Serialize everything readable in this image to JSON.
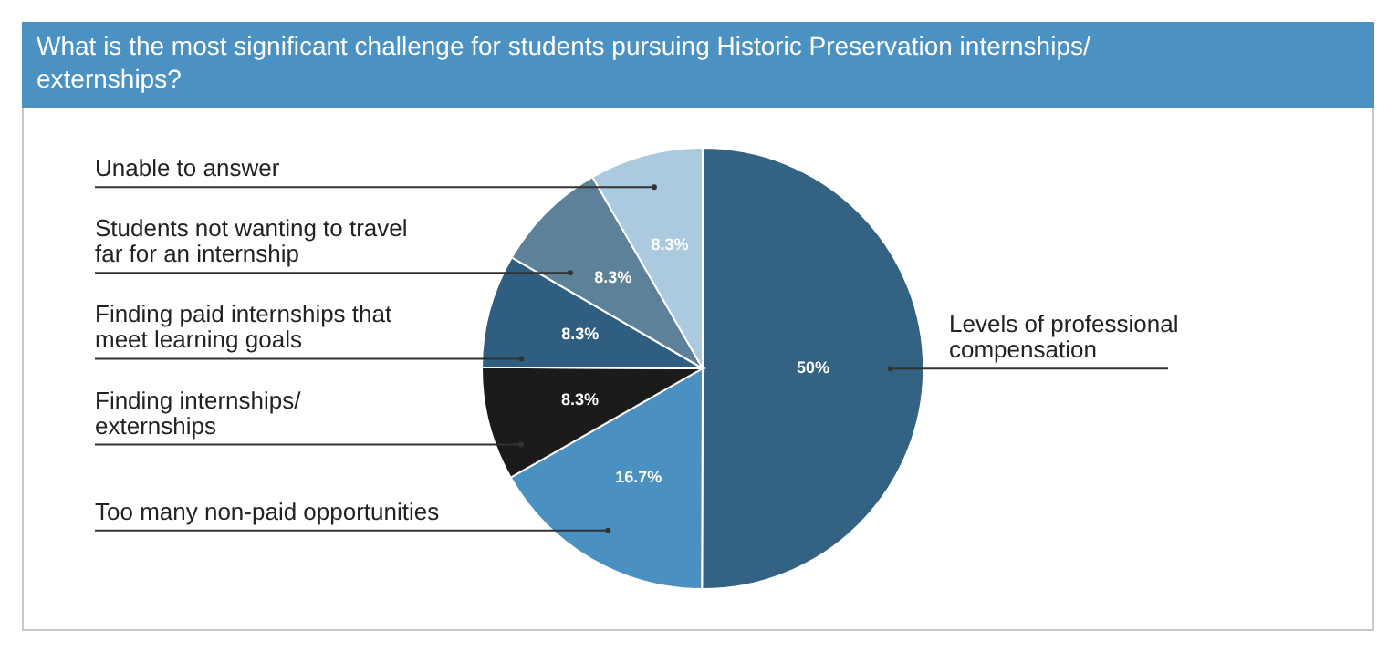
{
  "chart_data": {
    "type": "pie",
    "title": "What is the most significant challenge for students pursuing Historic Preservation internships/ externships?",
    "categories": [
      "Levels of professional compensation",
      "Too many non-paid opportunities",
      "Finding internships/ externships",
      "Finding paid internships that meet learning goals",
      "Students not wanting to travel far for an internship",
      "Unable to answer"
    ],
    "values": [
      50,
      16.7,
      8.3,
      8.3,
      8.3,
      8.3
    ],
    "colors": [
      "#336283",
      "#4a90c0",
      "#1b1b1b",
      "#2f5e80",
      "#5d8199",
      "#abc9df"
    ],
    "value_labels": [
      "50%",
      "16.7%",
      "8.3%",
      "8.3%",
      "8.3%",
      "8.3%"
    ]
  }
}
